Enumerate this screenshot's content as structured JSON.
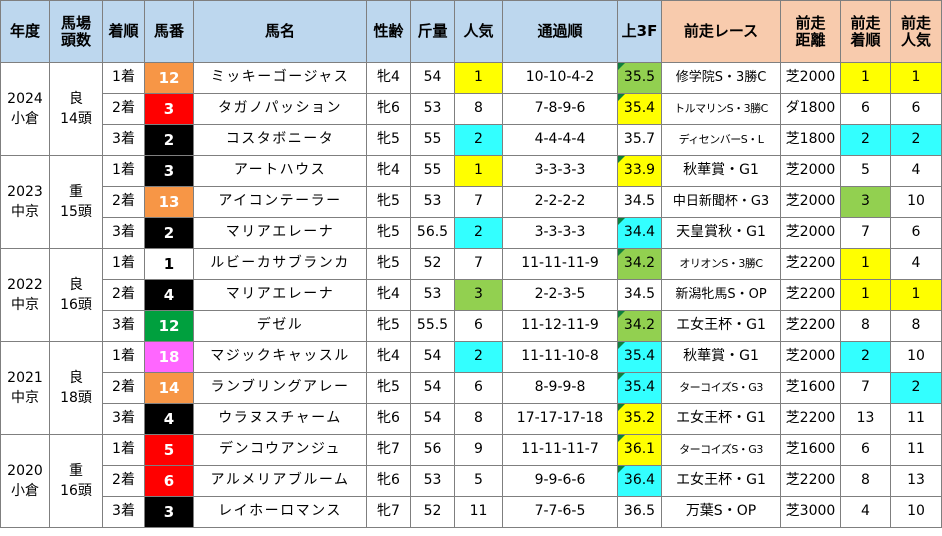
{
  "headers": {
    "year": "年度",
    "venue1": "馬場",
    "venue2": "頭数",
    "finish": "着順",
    "number": "馬番",
    "horse": "馬名",
    "sexage": "性齢",
    "weight": "斤量",
    "popularity": "人気",
    "passing": "通過順",
    "last3f": "上3F",
    "prev_race": "前走レース",
    "prev_dist1": "前走",
    "prev_dist2": "距離",
    "prev_finish1": "前走",
    "prev_finish2": "着順",
    "prev_pop1": "前走",
    "prev_pop2": "人気"
  },
  "races": [
    {
      "year": "2024",
      "venue": "小倉",
      "track": "良",
      "runners": "14頭",
      "rows": [
        {
          "finish": "1着",
          "number": "12",
          "num_bg": "#f79646",
          "num_fg": "#ffffff",
          "horse": "ミッキーゴージャス",
          "sexage": "牝4",
          "weight": "54",
          "pop": "1",
          "pop_c": "yellow",
          "passing": "10-10-4-2",
          "f3": "35.5",
          "f3_c": "green",
          "prev_race": "修学院S・3勝C",
          "prev_race_size": "med",
          "prev_dist": "芝2000",
          "prev_finish": "1",
          "pf_c": "yellow",
          "prev_pop": "1",
          "pp_c": "yellow"
        },
        {
          "finish": "2着",
          "number": "3",
          "num_bg": "#ff0000",
          "num_fg": "#ffffff",
          "horse": "タガノパッション",
          "sexage": "牝6",
          "weight": "53",
          "pop": "8",
          "pop_c": "",
          "passing": "7-8-9-6",
          "f3": "35.4",
          "f3_c": "yellow",
          "prev_race": "トルマリンS・3勝C",
          "prev_race_size": "small",
          "prev_dist": "ダ1800",
          "prev_finish": "6",
          "pf_c": "",
          "prev_pop": "6",
          "pp_c": ""
        },
        {
          "finish": "3着",
          "number": "2",
          "num_bg": "#000000",
          "num_fg": "#ffffff",
          "horse": "コスタボニータ",
          "sexage": "牝5",
          "weight": "55",
          "pop": "2",
          "pop_c": "cyan",
          "passing": "4-4-4-4",
          "f3": "35.7",
          "f3_c": "",
          "prev_race": "ディセンバーS・L",
          "prev_race_size": "small",
          "prev_dist": "芝1800",
          "prev_finish": "2",
          "pf_c": "cyan",
          "prev_pop": "2",
          "pp_c": "cyan"
        }
      ]
    },
    {
      "year": "2023",
      "venue": "中京",
      "track": "重",
      "runners": "15頭",
      "rows": [
        {
          "finish": "1着",
          "number": "3",
          "num_bg": "#000000",
          "num_fg": "#ffffff",
          "horse": "アートハウス",
          "sexage": "牝4",
          "weight": "55",
          "pop": "1",
          "pop_c": "yellow",
          "passing": "3-3-3-3",
          "f3": "33.9",
          "f3_c": "yellow",
          "prev_race": "秋華賞・G1",
          "prev_race_size": "",
          "prev_dist": "芝2000",
          "prev_finish": "5",
          "pf_c": "",
          "prev_pop": "4",
          "pp_c": ""
        },
        {
          "finish": "2着",
          "number": "13",
          "num_bg": "#f79646",
          "num_fg": "#ffffff",
          "horse": "アイコンテーラー",
          "sexage": "牝5",
          "weight": "53",
          "pop": "7",
          "pop_c": "",
          "passing": "2-2-2-2",
          "f3": "34.5",
          "f3_c": "",
          "prev_race": "中日新聞杯・G3",
          "prev_race_size": "med",
          "prev_dist": "芝2000",
          "prev_finish": "3",
          "pf_c": "green",
          "prev_pop": "10",
          "pp_c": ""
        },
        {
          "finish": "3着",
          "number": "2",
          "num_bg": "#000000",
          "num_fg": "#ffffff",
          "horse": "マリアエレーナ",
          "sexage": "牝5",
          "weight": "56.5",
          "pop": "2",
          "pop_c": "cyan",
          "passing": "3-3-3-3",
          "f3": "34.4",
          "f3_c": "cyan",
          "prev_race": "天皇賞秋・G1",
          "prev_race_size": "",
          "prev_dist": "芝2000",
          "prev_finish": "7",
          "pf_c": "",
          "prev_pop": "6",
          "pp_c": ""
        }
      ]
    },
    {
      "year": "2022",
      "venue": "中京",
      "track": "良",
      "runners": "16頭",
      "rows": [
        {
          "finish": "1着",
          "number": "1",
          "num_bg": "#ffffff",
          "num_fg": "#000000",
          "horse": "ルビーカサブランカ",
          "sexage": "牝5",
          "weight": "52",
          "pop": "7",
          "pop_c": "",
          "passing": "11-11-11-9",
          "f3": "34.2",
          "f3_c": "green",
          "prev_race": "オリオンS・3勝C",
          "prev_race_size": "small",
          "prev_dist": "芝2200",
          "prev_finish": "1",
          "pf_c": "yellow",
          "prev_pop": "4",
          "pp_c": ""
        },
        {
          "finish": "2着",
          "number": "4",
          "num_bg": "#000000",
          "num_fg": "#ffffff",
          "horse": "マリアエレーナ",
          "sexage": "牝4",
          "weight": "53",
          "pop": "3",
          "pop_c": "green",
          "passing": "2-2-3-5",
          "f3": "34.5",
          "f3_c": "",
          "prev_race": "新潟牝馬S・OP",
          "prev_race_size": "med",
          "prev_dist": "芝2200",
          "prev_finish": "1",
          "pf_c": "yellow",
          "prev_pop": "1",
          "pp_c": "yellow"
        },
        {
          "finish": "3着",
          "number": "12",
          "num_bg": "#00a03e",
          "num_fg": "#ffffff",
          "horse": "デゼル",
          "sexage": "牝5",
          "weight": "55.5",
          "pop": "6",
          "pop_c": "",
          "passing": "11-12-11-9",
          "f3": "34.2",
          "f3_c": "green",
          "prev_race": "エ女王杯・G1",
          "prev_race_size": "",
          "prev_dist": "芝2200",
          "prev_finish": "8",
          "pf_c": "",
          "prev_pop": "8",
          "pp_c": ""
        }
      ]
    },
    {
      "year": "2021",
      "venue": "中京",
      "track": "良",
      "runners": "18頭",
      "rows": [
        {
          "finish": "1着",
          "number": "18",
          "num_bg": "#ff66ff",
          "num_fg": "#ffffff",
          "horse": "マジックキャッスル",
          "sexage": "牝4",
          "weight": "54",
          "pop": "2",
          "pop_c": "cyan",
          "passing": "11-11-10-8",
          "f3": "35.4",
          "f3_c": "cyan",
          "prev_race": "秋華賞・G1",
          "prev_race_size": "",
          "prev_dist": "芝2000",
          "prev_finish": "2",
          "pf_c": "cyan",
          "prev_pop": "10",
          "pp_c": ""
        },
        {
          "finish": "2着",
          "number": "14",
          "num_bg": "#f79646",
          "num_fg": "#ffffff",
          "horse": "ランブリングアレー",
          "sexage": "牝5",
          "weight": "54",
          "pop": "6",
          "pop_c": "",
          "passing": "8-9-9-8",
          "f3": "35.4",
          "f3_c": "cyan",
          "prev_race": "ターコイズS・G3",
          "prev_race_size": "small",
          "prev_dist": "芝1600",
          "prev_finish": "7",
          "pf_c": "",
          "prev_pop": "2",
          "pp_c": "cyan"
        },
        {
          "finish": "3着",
          "number": "4",
          "num_bg": "#000000",
          "num_fg": "#ffffff",
          "horse": "ウラヌスチャーム",
          "sexage": "牝6",
          "weight": "54",
          "pop": "8",
          "pop_c": "",
          "passing": "17-17-17-18",
          "f3": "35.2",
          "f3_c": "yellow",
          "prev_race": "エ女王杯・G1",
          "prev_race_size": "",
          "prev_dist": "芝2200",
          "prev_finish": "13",
          "pf_c": "",
          "prev_pop": "11",
          "pp_c": ""
        }
      ]
    },
    {
      "year": "2020",
      "venue": "小倉",
      "track": "重",
      "runners": "16頭",
      "rows": [
        {
          "finish": "1着",
          "number": "5",
          "num_bg": "#ff0000",
          "num_fg": "#ffffff",
          "horse": "デンコウアンジュ",
          "sexage": "牝7",
          "weight": "56",
          "pop": "9",
          "pop_c": "",
          "passing": "11-11-11-7",
          "f3": "36.1",
          "f3_c": "yellow",
          "prev_race": "ターコイズS・G3",
          "prev_race_size": "small",
          "prev_dist": "芝1600",
          "prev_finish": "6",
          "pf_c": "",
          "prev_pop": "11",
          "pp_c": ""
        },
        {
          "finish": "2着",
          "number": "6",
          "num_bg": "#ff0000",
          "num_fg": "#ffffff",
          "horse": "アルメリアブルーム",
          "sexage": "牝6",
          "weight": "53",
          "pop": "5",
          "pop_c": "",
          "passing": "9-9-6-6",
          "f3": "36.4",
          "f3_c": "cyan",
          "prev_race": "エ女王杯・G1",
          "prev_race_size": "",
          "prev_dist": "芝2200",
          "prev_finish": "8",
          "pf_c": "",
          "prev_pop": "13",
          "pp_c": ""
        },
        {
          "finish": "3着",
          "number": "3",
          "num_bg": "#000000",
          "num_fg": "#ffffff",
          "horse": "レイホーロマンス",
          "sexage": "牝7",
          "weight": "52",
          "pop": "11",
          "pop_c": "",
          "passing": "7-7-6-5",
          "f3": "36.5",
          "f3_c": "",
          "prev_race": "万葉S・OP",
          "prev_race_size": "",
          "prev_dist": "芝3000",
          "prev_finish": "4",
          "pf_c": "",
          "prev_pop": "10",
          "pp_c": ""
        }
      ]
    }
  ]
}
